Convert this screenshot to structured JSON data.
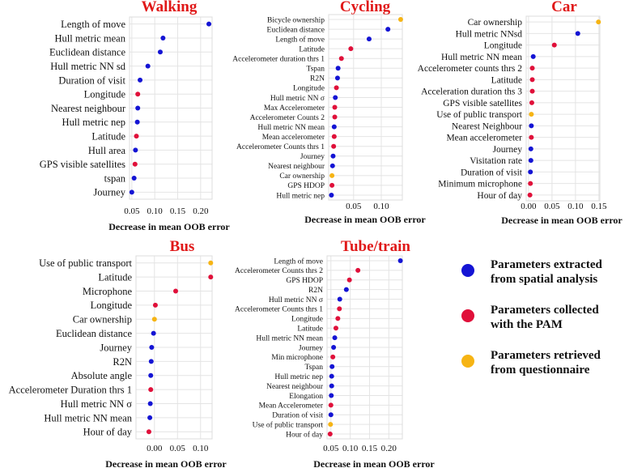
{
  "colors": {
    "spatial": "#1414d4",
    "pam": "#e0103a",
    "questionnaire": "#f6b414",
    "title": "#e01818",
    "grid": "#e4e4e4",
    "axis_line": "#999999",
    "text": "#111111"
  },
  "legend": [
    {
      "key": "spatial",
      "label_line1": "Parameters extracted",
      "label_line2": "from spatial analysis"
    },
    {
      "key": "pam",
      "label_line1": "Parameters collected",
      "label_line2": "with the PAM"
    },
    {
      "key": "questionnaire",
      "label_line1": "Parameters retrieved",
      "label_line2": "from questionnaire"
    }
  ],
  "chart_data": [
    {
      "type": "scatter",
      "title": "Walking",
      "xlabel": "Decrease in mean OOB error",
      "xlim": [
        0.045,
        0.225
      ],
      "xticks": [
        0.05,
        0.1,
        0.15,
        0.2
      ],
      "tick_labels": [
        "0.05",
        "0.10",
        "0.15",
        "0.20"
      ],
      "categories": [
        "Length of move",
        "Hull metric mean",
        "Euclidean distance",
        "Hull metric NN sd",
        "Duration of visit",
        "Longitude",
        "Nearest neighbour",
        "Hull metric nep",
        "Latitude",
        "Hull area",
        "GPS visible satellites",
        "tspan",
        "Journey"
      ],
      "values": [
        0.218,
        0.118,
        0.112,
        0.085,
        0.068,
        0.063,
        0.063,
        0.062,
        0.06,
        0.058,
        0.057,
        0.055,
        0.05
      ],
      "groups": [
        "spatial",
        "spatial",
        "spatial",
        "spatial",
        "spatial",
        "pam",
        "spatial",
        "spatial",
        "pam",
        "spatial",
        "pam",
        "spatial",
        "spatial"
      ]
    },
    {
      "type": "scatter",
      "title": "Cycling",
      "xlabel": "Decrease in mean OOB error",
      "xlim": [
        0.005,
        0.138
      ],
      "xticks": [
        0.05,
        0.1
      ],
      "tick_labels": [
        "0.05",
        "0.10"
      ],
      "categories": [
        "Bicycle ownership",
        "Euclidean distance",
        "Length of move",
        "Latitude",
        "Accelerometer duration thrs 1",
        "Tspan",
        "R2N",
        "Longitude",
        "Hull metric NN σ",
        "Max Accelerometer",
        "Accelerometer Counts 2",
        "Hull metric NN mean",
        "Mean accelerometer",
        "Accelerometer Counts thrs 1",
        "Journey",
        "Nearest neighbour",
        "Car ownership",
        "GPS HDOP",
        "Hull metric nep"
      ],
      "values": [
        0.135,
        0.112,
        0.078,
        0.045,
        0.028,
        0.022,
        0.021,
        0.019,
        0.017,
        0.016,
        0.016,
        0.015,
        0.015,
        0.014,
        0.013,
        0.012,
        0.011,
        0.011,
        0.01
      ],
      "groups": [
        "questionnaire",
        "spatial",
        "spatial",
        "pam",
        "pam",
        "spatial",
        "spatial",
        "pam",
        "spatial",
        "pam",
        "pam",
        "spatial",
        "pam",
        "pam",
        "spatial",
        "spatial",
        "questionnaire",
        "pam",
        "spatial"
      ]
    },
    {
      "type": "scatter",
      "title": "Car",
      "xlabel": "Decrease in mean OOB error",
      "xlim": [
        -0.005,
        0.152
      ],
      "xticks": [
        0,
        0.05,
        0.1,
        0.15
      ],
      "tick_labels": [
        "0.00",
        "0.05",
        "0.10",
        "0.15"
      ],
      "categories": [
        "Car ownership",
        "Hull metric NNsd",
        "Longitude",
        "Hull metric NN mean",
        "Accelerometer counts thrs 2",
        "Latitude",
        "Acceleration duration ths 3",
        "GPS visible satellites",
        "Use of public transport",
        "Nearest Neighbour",
        "Mean accelerometer",
        "Journey",
        "Visitation rate",
        "Duration of visit",
        "Minimum microphone",
        "Hour of day"
      ],
      "values": [
        0.149,
        0.105,
        0.055,
        0.01,
        0.008,
        0.008,
        0.008,
        0.007,
        0.006,
        0.006,
        0.006,
        0.005,
        0.005,
        0.004,
        0.004,
        0.003
      ],
      "groups": [
        "questionnaire",
        "spatial",
        "pam",
        "spatial",
        "pam",
        "pam",
        "pam",
        "pam",
        "questionnaire",
        "spatial",
        "pam",
        "spatial",
        "spatial",
        "spatial",
        "pam",
        "pam"
      ]
    },
    {
      "type": "scatter",
      "title": "Bus",
      "xlabel": "Decrease in mean OOB error",
      "xlim": [
        -0.04,
        0.125
      ],
      "xticks": [
        0,
        0.05,
        0.1
      ],
      "tick_labels": [
        "0.00",
        "0.05",
        "0.10"
      ],
      "categories": [
        "Use of public transport",
        "Latitude",
        "Microphone",
        "Longitude",
        "Car ownership",
        "Euclidean distance",
        "Journey",
        "R2N",
        "Absolute angle",
        "Accelerometer Duration thrs 1",
        "Hull metric NN σ",
        "Hull metric NN mean",
        "Hour of day"
      ],
      "values": [
        0.122,
        0.122,
        0.046,
        0.002,
        0.0,
        -0.002,
        -0.006,
        -0.007,
        -0.008,
        -0.008,
        -0.009,
        -0.01,
        -0.012
      ],
      "groups": [
        "questionnaire",
        "pam",
        "pam",
        "pam",
        "questionnaire",
        "spatial",
        "spatial",
        "spatial",
        "spatial",
        "pam",
        "spatial",
        "spatial",
        "pam"
      ]
    },
    {
      "type": "scatter",
      "title": "Tube/train",
      "xlabel": "Decrease in mean OOB error",
      "xlim": [
        0.04,
        0.235
      ],
      "xticks": [
        0.05,
        0.1,
        0.15,
        0.2
      ],
      "tick_labels": [
        "0.05",
        "0.10",
        "0.15",
        "0.20"
      ],
      "categories": [
        "Length of move",
        "Accelerometer Counts thrs 2",
        "GPS HDOP",
        "R2N",
        "Hull metric NN σ",
        "Accelerometer Counts thrs 1",
        "Longitude",
        "Latitude",
        "Hull metric NN mean",
        "Journey",
        "Min microphone",
        "Tspan",
        "Hull metric nep",
        "Nearest neighbour",
        "Elongation",
        "Mean Accelerometer",
        "Duration of visit",
        "Use of public transport",
        "Hour of day"
      ],
      "values": [
        0.23,
        0.12,
        0.098,
        0.09,
        0.073,
        0.072,
        0.068,
        0.063,
        0.06,
        0.057,
        0.055,
        0.053,
        0.052,
        0.052,
        0.051,
        0.05,
        0.05,
        0.049,
        0.048
      ],
      "groups": [
        "spatial",
        "pam",
        "pam",
        "spatial",
        "spatial",
        "pam",
        "pam",
        "pam",
        "spatial",
        "spatial",
        "pam",
        "spatial",
        "spatial",
        "spatial",
        "spatial",
        "pam",
        "spatial",
        "questionnaire",
        "pam"
      ]
    }
  ]
}
